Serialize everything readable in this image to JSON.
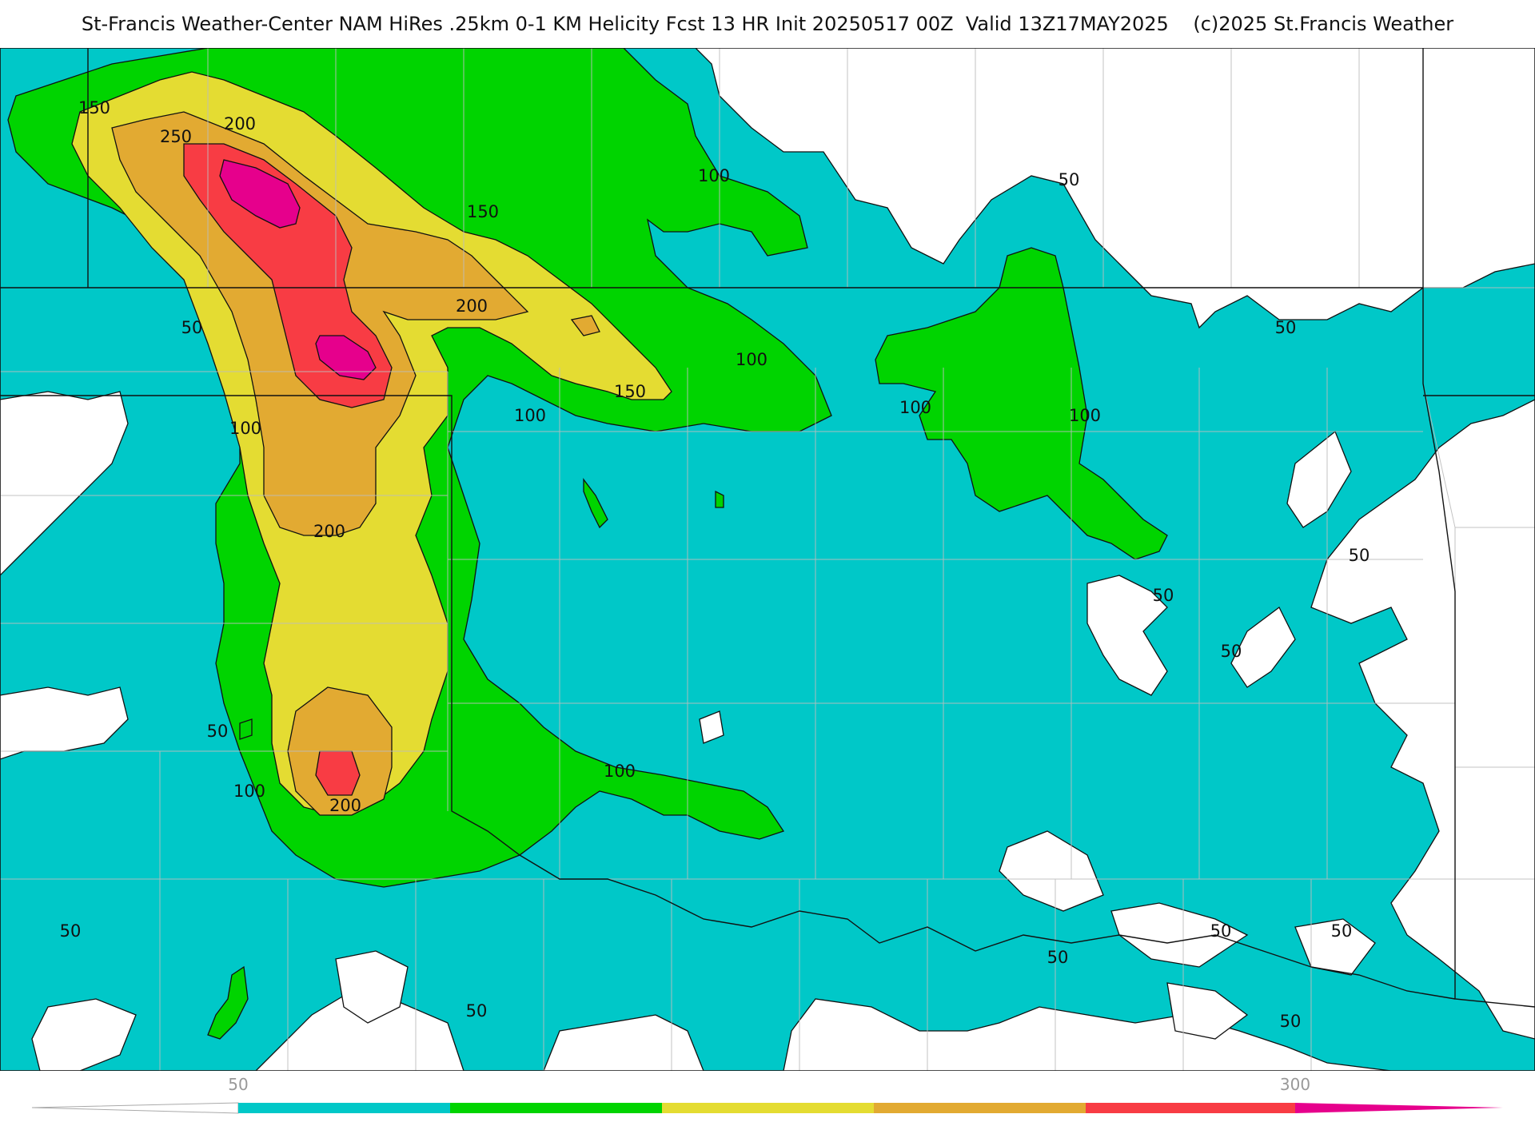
{
  "title": "St-Francis Weather-Center NAM HiRes .25km 0-1 KM Helicity Fcst 13 HR Init 20250517 00Z  Valid 13Z17MAY2025    (c)2025 St.Francis Weather",
  "colors": {
    "background": "#ffffff",
    "lt50": "#ffffff",
    "c50_100": "#00c8c8",
    "c100_150": "#00d400",
    "c150_200": "#e4dc32",
    "c200_250": "#e2aa32",
    "c250_300": "#f83c44",
    "c300plus": "#e6008c",
    "contour_line": "#111111",
    "border_line": "#111111",
    "county_line": "#bdbdbd"
  },
  "contour_labels": [
    "150",
    "200",
    "250",
    "100",
    "50",
    "150",
    "200",
    "100",
    "150",
    "100",
    "50",
    "100",
    "100",
    "200",
    "50",
    "50",
    "50",
    "50",
    "100",
    "200",
    "100",
    "100",
    "50",
    "50",
    "50",
    "50",
    "50",
    "50",
    "50"
  ],
  "colorbar": {
    "ticks": [
      "50",
      "300"
    ],
    "segments": [
      "#00c8c8",
      "#00d400",
      "#e4dc32",
      "#e2aa32",
      "#f83c44"
    ],
    "low_end": "#ffffff",
    "high_end": "#e6008c"
  }
}
